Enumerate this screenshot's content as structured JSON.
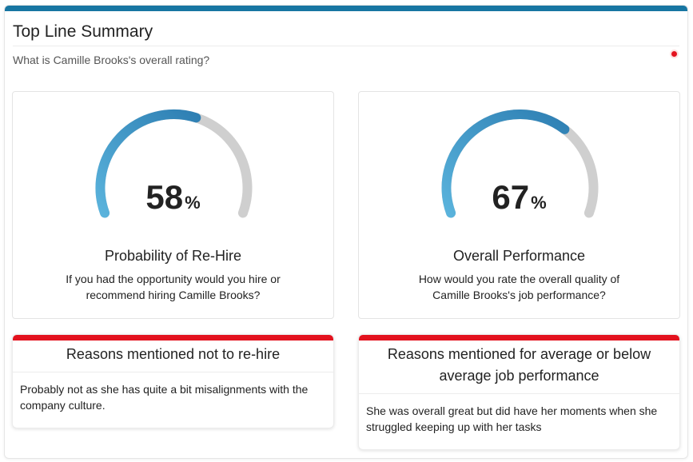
{
  "summary": {
    "title": "Top Line Summary",
    "subtitle": "What is Camille Brooks's overall rating?"
  },
  "gauges": [
    {
      "value": "58",
      "percent": 58,
      "unit": "%",
      "title": "Probability of Re-Hire",
      "question": "If you had the opportunity would you hire or recommend hiring Camille Brooks?"
    },
    {
      "value": "67",
      "percent": 67,
      "unit": "%",
      "title": "Overall Performance",
      "question": "How would you rate the overall quality of Camille Brooks's job performance?"
    }
  ],
  "reasons": [
    {
      "heading": "Reasons mentioned not to re-hire",
      "text": "Probably not as she has quite a bit misalignments with the company culture."
    },
    {
      "heading": "Reasons mentioned for average or below average job performance",
      "text": "She was overall great but did have her moments when she struggled keeping up with her tasks"
    }
  ],
  "colors": {
    "accent_bar": "#1776a2",
    "reason_bar": "#e3121e",
    "gauge_track": "#cfcfcf",
    "gauge_start": "#5ab3dc",
    "gauge_end": "#2e7fb3",
    "status_dot": "#e3121e"
  }
}
